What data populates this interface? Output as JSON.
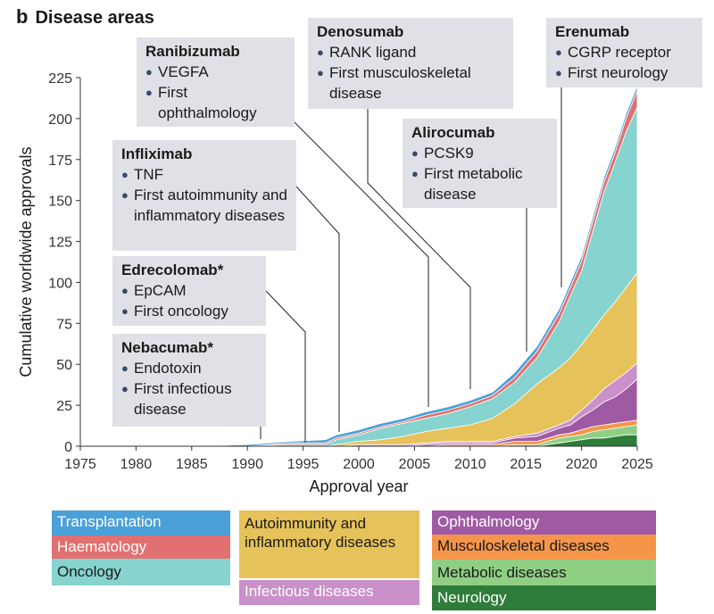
{
  "panel": {
    "letter": "b",
    "title": "Disease areas"
  },
  "chart_data": {
    "type": "area",
    "xlabel": "Approval year",
    "ylabel": "Cumulative worldwide approvals",
    "xlim": [
      1975,
      2025
    ],
    "ylim": [
      0,
      225
    ],
    "xticks": [
      "1975",
      "1980",
      "1985",
      "1990",
      "1995",
      "2000",
      "2005",
      "2010",
      "2015",
      "2020",
      "2025"
    ],
    "yticks": [
      "0",
      "25",
      "50",
      "75",
      "100",
      "125",
      "150",
      "175",
      "200",
      "225"
    ],
    "grid": false,
    "stacked": true,
    "x": [
      1986,
      1990,
      1994,
      1997,
      1998,
      2000,
      2002,
      2004,
      2006,
      2008,
      2010,
      2012,
      2014,
      2016,
      2018,
      2019,
      2020,
      2021,
      2022,
      2023,
      2024,
      2025
    ],
    "series": [
      {
        "name": "Neurology",
        "color": "#2e7d3a",
        "values": [
          0,
          0,
          0,
          0,
          0,
          0,
          0,
          0,
          0,
          0,
          0,
          0,
          0,
          0,
          2,
          3,
          4,
          5,
          5,
          6,
          7,
          7
        ]
      },
      {
        "name": "Metabolic diseases",
        "color": "#8fcf84",
        "values": [
          0,
          0,
          0,
          0,
          0,
          0,
          0,
          0,
          0,
          0,
          0,
          0,
          1,
          1,
          3,
          3,
          3,
          4,
          5,
          5,
          5,
          6
        ]
      },
      {
        "name": "Musculoskeletal diseases",
        "color": "#f5954a",
        "values": [
          0,
          0,
          0,
          0,
          0,
          0,
          0,
          0,
          0,
          1,
          1,
          1,
          2,
          2,
          2,
          2,
          3,
          3,
          3,
          3,
          3,
          3
        ]
      },
      {
        "name": "Ophthalmology",
        "color": "#a05aa3",
        "values": [
          0,
          0,
          0,
          0,
          0,
          0,
          0,
          0,
          1,
          1,
          1,
          1,
          2,
          3,
          4,
          5,
          8,
          10,
          14,
          16,
          20,
          25
        ]
      },
      {
        "name": "Infectious diseases",
        "color": "#c990c9",
        "values": [
          0,
          0,
          0,
          0,
          0,
          1,
          1,
          1,
          1,
          1,
          1,
          1,
          1,
          2,
          2,
          3,
          4,
          6,
          8,
          10,
          10,
          10
        ]
      },
      {
        "name": "Autoimmunity and inflammatory diseases",
        "color": "#e6c25a",
        "values": [
          0,
          0,
          0,
          0,
          1,
          2,
          3,
          5,
          7,
          8,
          10,
          14,
          20,
          30,
          35,
          38,
          40,
          43,
          45,
          48,
          52,
          55
        ]
      },
      {
        "name": "Oncology",
        "color": "#86d3cf",
        "values": [
          0,
          0,
          1,
          1,
          3,
          4,
          7,
          8,
          8,
          9,
          11,
          12,
          13,
          16,
          28,
          38,
          45,
          60,
          75,
          85,
          95,
          101
        ]
      },
      {
        "name": "Haematology",
        "color": "#e37070",
        "values": [
          0,
          0,
          1,
          1,
          1,
          1,
          1,
          1,
          2,
          2,
          2,
          2,
          3,
          4,
          5,
          5,
          6,
          6,
          6,
          6,
          8,
          10
        ]
      },
      {
        "name": "Transplantation",
        "color": "#4aa0d8",
        "values": [
          0,
          1,
          1,
          2,
          2,
          2,
          2,
          2,
          2,
          2,
          2,
          2,
          3,
          3,
          3,
          3,
          3,
          3,
          3,
          3,
          3,
          3
        ]
      }
    ]
  },
  "callouts": [
    {
      "name": "Ranibizumab",
      "items": [
        "VEGFA",
        "First ophthalmology"
      ]
    },
    {
      "name": "Denosumab",
      "items": [
        "RANK ligand",
        "First musculoskeletal disease"
      ]
    },
    {
      "name": "Erenumab",
      "items": [
        "CGRP receptor",
        "First neurology"
      ]
    },
    {
      "name": "Alirocumab",
      "items": [
        "PCSK9",
        "First metabolic disease"
      ]
    },
    {
      "name": "Infliximab",
      "items": [
        "TNF",
        "First autoimmunity and inflammatory diseases"
      ]
    },
    {
      "name": "Edrecolomab*",
      "items": [
        "EpCAM",
        "First oncology"
      ]
    },
    {
      "name": "Nebacumab*",
      "items": [
        "Endotoxin",
        "First infectious disease"
      ]
    }
  ],
  "legend": [
    {
      "label": "Transplantation",
      "color": "#4aa0d8"
    },
    {
      "label": "Haematology",
      "color": "#e37070"
    },
    {
      "label": "Oncology",
      "color": "#86d3cf"
    },
    {
      "label": "Autoimmunity and inflammatory diseases",
      "color": "#e6c25a"
    },
    {
      "label": "Infectious diseases",
      "color": "#c990c9"
    },
    {
      "label": "Ophthalmology",
      "color": "#a05aa3"
    },
    {
      "label": "Musculoskeletal diseases",
      "color": "#f5954a"
    },
    {
      "label": "Metabolic diseases",
      "color": "#8fcf84"
    },
    {
      "label": "Neurology",
      "color": "#2e7d3a"
    }
  ]
}
